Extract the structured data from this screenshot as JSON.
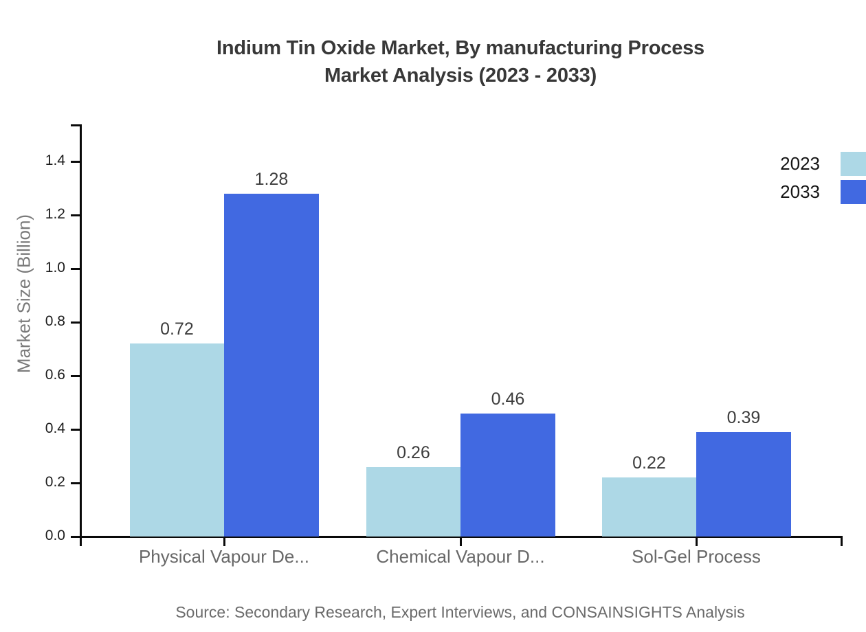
{
  "title": {
    "line1": "Indium Tin Oxide Market, By manufacturing Process",
    "line2": "Market Analysis (2023 - 2033)"
  },
  "legend": [
    {
      "label": "2023",
      "color": "#ADD8E6"
    },
    {
      "label": "2033",
      "color": "#4169E1"
    }
  ],
  "source": "Source: Secondary Research, Expert Interviews, and CONSAINSIGHTS Analysis",
  "chart_data": {
    "type": "bar",
    "title": "Indium Tin Oxide Market, By manufacturing Process Market Analysis (2023 - 2033)",
    "categories": [
      "Physical Vapour De...",
      "Chemical Vapour D...",
      "Sol-Gel Process"
    ],
    "series": [
      {
        "name": "2023",
        "color": "#ADD8E6",
        "values": [
          0.72,
          0.26,
          0.22
        ]
      },
      {
        "name": "2033",
        "color": "#4169E1",
        "values": [
          1.28,
          0.46,
          0.39
        ]
      }
    ],
    "xlabel": "",
    "ylabel": "Market Size (Billion)",
    "ylim": [
      0,
      1.54
    ],
    "y_ticks": [
      0.0,
      0.2,
      0.4,
      0.6,
      0.8,
      1.0,
      1.2,
      1.4
    ],
    "value_labels": true,
    "grid": false,
    "legend_position": "top-right"
  }
}
